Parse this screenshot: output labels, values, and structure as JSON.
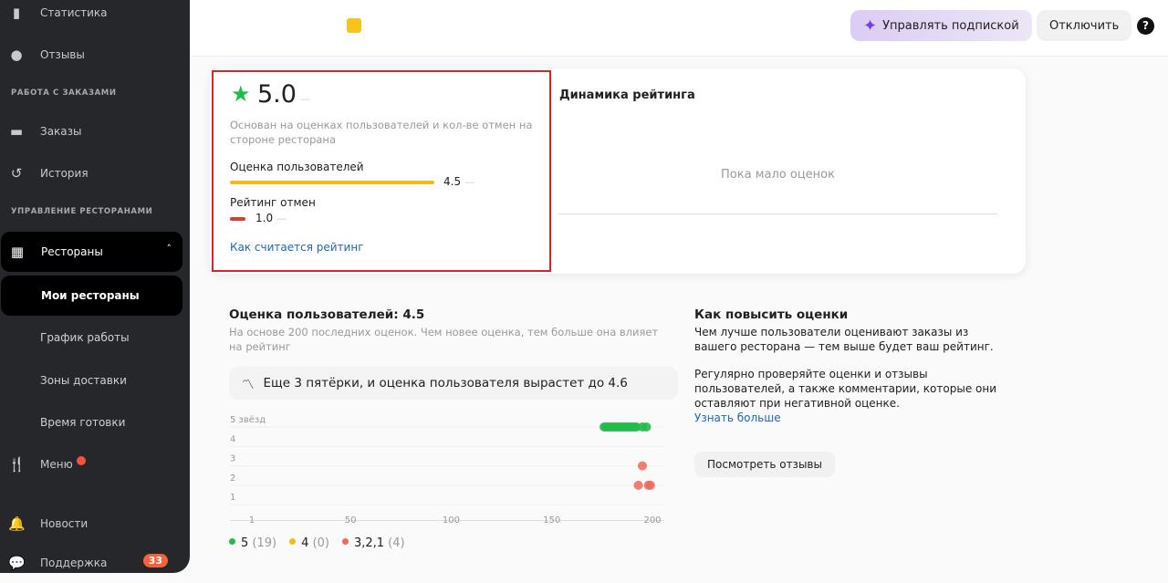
{
  "sidebar": {
    "items": [
      {
        "label": "Статистика",
        "icon": "bar-chart-icon"
      },
      {
        "label": "Отзывы",
        "icon": "review-star-icon"
      }
    ],
    "section_orders": "РАБОТА С ЗАКАЗАМИ",
    "orders_items": [
      {
        "label": "Заказы",
        "icon": "orders-icon"
      },
      {
        "label": "История",
        "icon": "history-icon"
      }
    ],
    "section_restaurants": "УПРАВЛЕНИЕ РЕСТОРАНАМИ",
    "restaurants": {
      "label": "Рестораны",
      "icon": "store-icon"
    },
    "sub_items": [
      {
        "label": "Мои рестораны"
      },
      {
        "label": "График работы"
      },
      {
        "label": "Зоны доставки"
      },
      {
        "label": "Время готовки"
      }
    ],
    "menu": {
      "label": "Меню",
      "has_dot": true
    },
    "news": {
      "label": "Новости"
    },
    "support": {
      "label": "Поддержка",
      "badge": "33"
    }
  },
  "topbar": {
    "manage_subscription": "Управлять подпиской",
    "disable": "Отключить",
    "help": "?"
  },
  "rating": {
    "value": "5.0",
    "dash": "—",
    "description": "Основан на оценках пользователей и кол-ве отмен на стороне ресторана",
    "user_rating_label": "Оценка пользователей",
    "user_rating_value": "4.5",
    "user_rating_fraction": 0.9,
    "cancel_label": "Рейтинг отмен",
    "cancel_value": "1.0",
    "cancel_fraction": 0.0,
    "how_link": "Как считается рейтинг"
  },
  "dynamics": {
    "title": "Динамика рейтинга",
    "empty": "Пока мало оценок"
  },
  "user_scores": {
    "title": "Оценка пользователей: 4.5",
    "subtitle": "На основе 200 последних оценок. Чем новее оценка, тем больше она влияет на рейтинг",
    "hint": "Еще 3 пятёрки, и оценка пользователя вырастет до 4.6"
  },
  "chart_data": {
    "type": "scatter",
    "y_ticks": [
      "5 звёзд",
      "4",
      "3",
      "2",
      "1"
    ],
    "x_ticks": [
      "1",
      "50",
      "100",
      "150",
      "200"
    ],
    "xlim": [
      1,
      200
    ],
    "ylim": [
      1,
      5
    ],
    "colors": {
      "five": "#22bb4a",
      "four": "#f5b919",
      "low": "#f0675a"
    },
    "series": [
      {
        "name": "5",
        "points": [
          [
            176,
            5
          ],
          [
            177,
            5
          ],
          [
            178,
            5
          ],
          [
            179,
            5
          ],
          [
            180,
            5
          ],
          [
            181,
            5
          ],
          [
            182,
            5
          ],
          [
            183,
            5
          ],
          [
            184,
            5
          ],
          [
            185,
            5
          ],
          [
            186,
            5
          ],
          [
            187,
            5
          ],
          [
            188,
            5
          ],
          [
            189,
            5
          ],
          [
            190,
            5
          ],
          [
            191,
            5
          ],
          [
            192,
            5
          ],
          [
            195,
            5
          ],
          [
            197,
            5
          ]
        ]
      },
      {
        "name": "4",
        "points": []
      },
      {
        "name": "3,2,1",
        "points": [
          [
            195,
            3
          ],
          [
            193,
            2
          ],
          [
            198,
            2
          ],
          [
            199,
            2
          ]
        ]
      }
    ],
    "legend": [
      {
        "label": "5",
        "count": "(19)",
        "color": "#22bb4a"
      },
      {
        "label": "4",
        "count": "(0)",
        "color": "#f5b919"
      },
      {
        "label": "3,2,1",
        "count": "(4)",
        "color": "#f0675a"
      }
    ]
  },
  "improve": {
    "title": "Как повысить оценки",
    "p1": "Чем лучше пользователи оценивают заказы из вашего ресторана — тем выше будет ваш рейтинг.",
    "p2": "Регулярно проверяйте оценки и отзывы пользователей, а также комментарии, которые они оставляют при негативной оценке.",
    "learn_more": "Узнать больше",
    "view_reviews": "Посмотреть отзывы"
  }
}
